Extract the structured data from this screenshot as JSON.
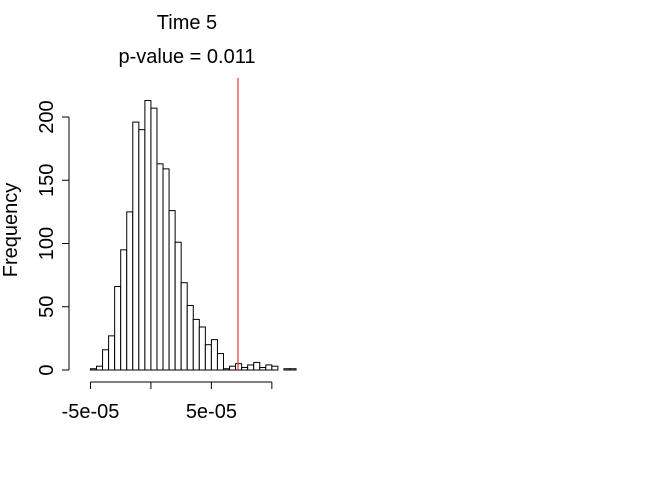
{
  "chart_data": {
    "type": "bar",
    "title": "Time 5",
    "subtitle": "p-value = 0.011",
    "xlabel": "",
    "ylabel": "Frequency",
    "ylim": [
      0,
      230
    ],
    "x_ticks": [
      -5e-05,
      0,
      5e-05,
      0.0001
    ],
    "x_tick_labels": [
      "-5e-05",
      "",
      "5e-05",
      ""
    ],
    "y_ticks": [
      0,
      50,
      100,
      150,
      200
    ],
    "y_tick_labels": [
      "0",
      "50",
      "100",
      "150",
      "200"
    ],
    "bin_width": 5e-06,
    "x_start": -5e-05,
    "values": [
      1,
      3,
      16,
      27,
      66,
      95,
      125,
      196,
      190,
      213,
      207,
      163,
      159,
      126,
      101,
      69,
      51,
      40,
      34,
      20,
      24,
      13,
      1,
      3,
      5,
      2,
      4,
      6,
      2,
      4,
      3,
      0,
      1,
      1
    ],
    "reference_line": {
      "x": 7.2e-05,
      "color": "#e5362e"
    },
    "grid": false,
    "legend": "none"
  }
}
